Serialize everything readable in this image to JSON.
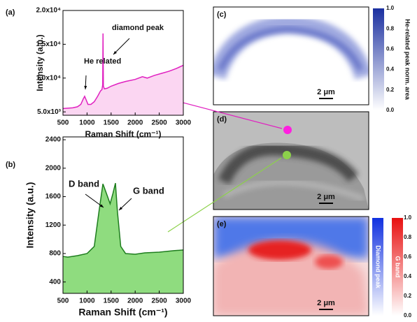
{
  "chart_data": [
    {
      "type": "area",
      "panel": "(a)",
      "xlabel": "Raman Shift (cm⁻¹)",
      "ylabel": "Intensity (a.u.)",
      "x": [
        500,
        600,
        700,
        800,
        870,
        920,
        950,
        980,
        1020,
        1080,
        1150,
        1220,
        1280,
        1310,
        1325,
        1332,
        1340,
        1360,
        1420,
        1500,
        1650,
        1800,
        2000,
        2150,
        2250,
        2400,
        2550,
        2700,
        2850,
        3000
      ],
      "values": [
        5500,
        5550,
        5600,
        5750,
        6100,
        6900,
        7300,
        6800,
        6100,
        6100,
        6500,
        7300,
        8100,
        8300,
        9000,
        16600,
        8800,
        8400,
        8500,
        8800,
        9200,
        9500,
        9800,
        10200,
        10000,
        10400,
        10700,
        11000,
        11400,
        11900
      ],
      "color": "#e020c0",
      "fill_color": "#fbd6f2",
      "xlim": [
        500,
        3000
      ],
      "xticks": [
        500,
        1000,
        1500,
        2000,
        2500,
        3000
      ],
      "ylim": [
        4500,
        20000
      ],
      "yticks": [
        {
          "value": 5000,
          "label": "5.0x10³"
        },
        {
          "value": 10000,
          "label": "1.0x10⁴"
        },
        {
          "value": 15000,
          "label": "1.5x10⁴"
        },
        {
          "value": 20000,
          "label": "2.0x10⁴"
        }
      ],
      "annotations": [
        "He related",
        "diamond peak"
      ]
    },
    {
      "type": "area",
      "panel": "(b)",
      "xlabel": "Raman Shift (cm⁻¹)",
      "ylabel": "Intensity (a.u.)",
      "x": [
        500,
        600,
        800,
        1000,
        1150,
        1250,
        1330,
        1400,
        1480,
        1540,
        1590,
        1630,
        1700,
        1800,
        2000,
        2200,
        2500,
        2800,
        3000
      ],
      "values": [
        760,
        750,
        770,
        800,
        900,
        1400,
        1780,
        1650,
        1500,
        1650,
        1790,
        1400,
        900,
        800,
        790,
        810,
        820,
        840,
        850
      ],
      "color": "#1e7d1e",
      "fill_color": "#8fdc7f",
      "xlim": [
        500,
        3000
      ],
      "xticks": [
        500,
        1000,
        1500,
        2000,
        2500,
        3000
      ],
      "ylim": [
        240,
        2440
      ],
      "yticks": [
        400,
        800,
        1200,
        1600,
        2000,
        2400
      ],
      "annotations": [
        "D band",
        "G band"
      ]
    }
  ],
  "maps": [
    {
      "panel": "(c)",
      "scale_bar": "2 μm",
      "colorbars": [
        {
          "title": "He-related peak norm. area",
          "color": "#1a2fa0"
        }
      ],
      "ticks": [
        {
          "value": 0,
          "label": "0.0"
        },
        {
          "value": 0.2,
          "label": "0.2"
        },
        {
          "value": 0.4,
          "label": "0.4"
        },
        {
          "value": 0.6,
          "label": "0.6"
        },
        {
          "value": 0.8,
          "label": "0.8"
        },
        {
          "value": 1,
          "label": "1.0"
        }
      ]
    },
    {
      "panel": "(d)",
      "scale_bar": "2 μm",
      "colorbars": [],
      "ticks": []
    },
    {
      "panel": "(e)",
      "scale_bar": "2 μm",
      "colorbars": [
        {
          "title": "Diamond peak",
          "color": "#1030e0"
        },
        {
          "title": "G band",
          "color": "#e81010"
        }
      ],
      "ticks": [
        {
          "value": 0,
          "label": "0.0"
        },
        {
          "value": 0.2,
          "label": "0.2"
        },
        {
          "value": 0.4,
          "label": "0.4"
        },
        {
          "value": 0.6,
          "label": "0.6"
        },
        {
          "value": 0.8,
          "label": "0.8"
        },
        {
          "value": 1,
          "label": "1.0"
        }
      ]
    }
  ]
}
